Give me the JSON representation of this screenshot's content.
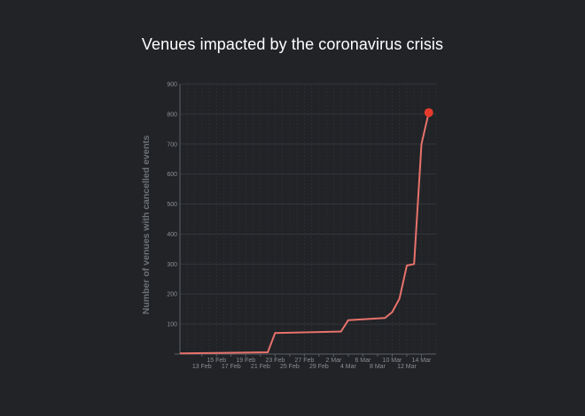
{
  "chart_data": {
    "type": "line",
    "title": "Venues impacted by the coronavirus crisis",
    "xlabel": "",
    "ylabel": "Number of venues  with cancelled events",
    "ylim": [
      0,
      900
    ],
    "y_ticks": [
      100,
      200,
      300,
      400,
      500,
      600,
      700,
      800,
      900
    ],
    "xlim": [
      "2020-02-10",
      "2020-03-16"
    ],
    "x_ticks_upper": [
      "15 Feb",
      "19 Feb",
      "23 Feb",
      "27 Feb",
      "2 Mar",
      "6 Mar",
      "10 Mar",
      "14 Mar"
    ],
    "x_ticks_lower": [
      "13 Feb",
      "17 Feb",
      "21 Feb",
      "25 Feb",
      "29 Feb",
      "4 Mar",
      "8 Mar",
      "12 Mar"
    ],
    "x_ticks_upper_dates": [
      "2020-02-15",
      "2020-02-19",
      "2020-02-23",
      "2020-02-27",
      "2020-03-02",
      "2020-03-06",
      "2020-03-10",
      "2020-03-14"
    ],
    "x_ticks_lower_dates": [
      "2020-02-13",
      "2020-02-17",
      "2020-02-21",
      "2020-02-25",
      "2020-02-29",
      "2020-03-04",
      "2020-03-08",
      "2020-03-12"
    ],
    "grid": true,
    "series": [
      {
        "color": "#e8726b",
        "x": [
          "2020-02-10",
          "2020-02-22",
          "2020-02-23",
          "2020-03-03",
          "2020-03-04",
          "2020-03-09",
          "2020-03-10",
          "2020-03-11",
          "2020-03-12",
          "2020-03-13",
          "2020-03-14",
          "2020-03-15"
        ],
        "values": [
          2,
          6,
          70,
          75,
          113,
          120,
          140,
          185,
          295,
          300,
          700,
          805
        ]
      }
    ],
    "highlight_color": "#e53b2c"
  }
}
